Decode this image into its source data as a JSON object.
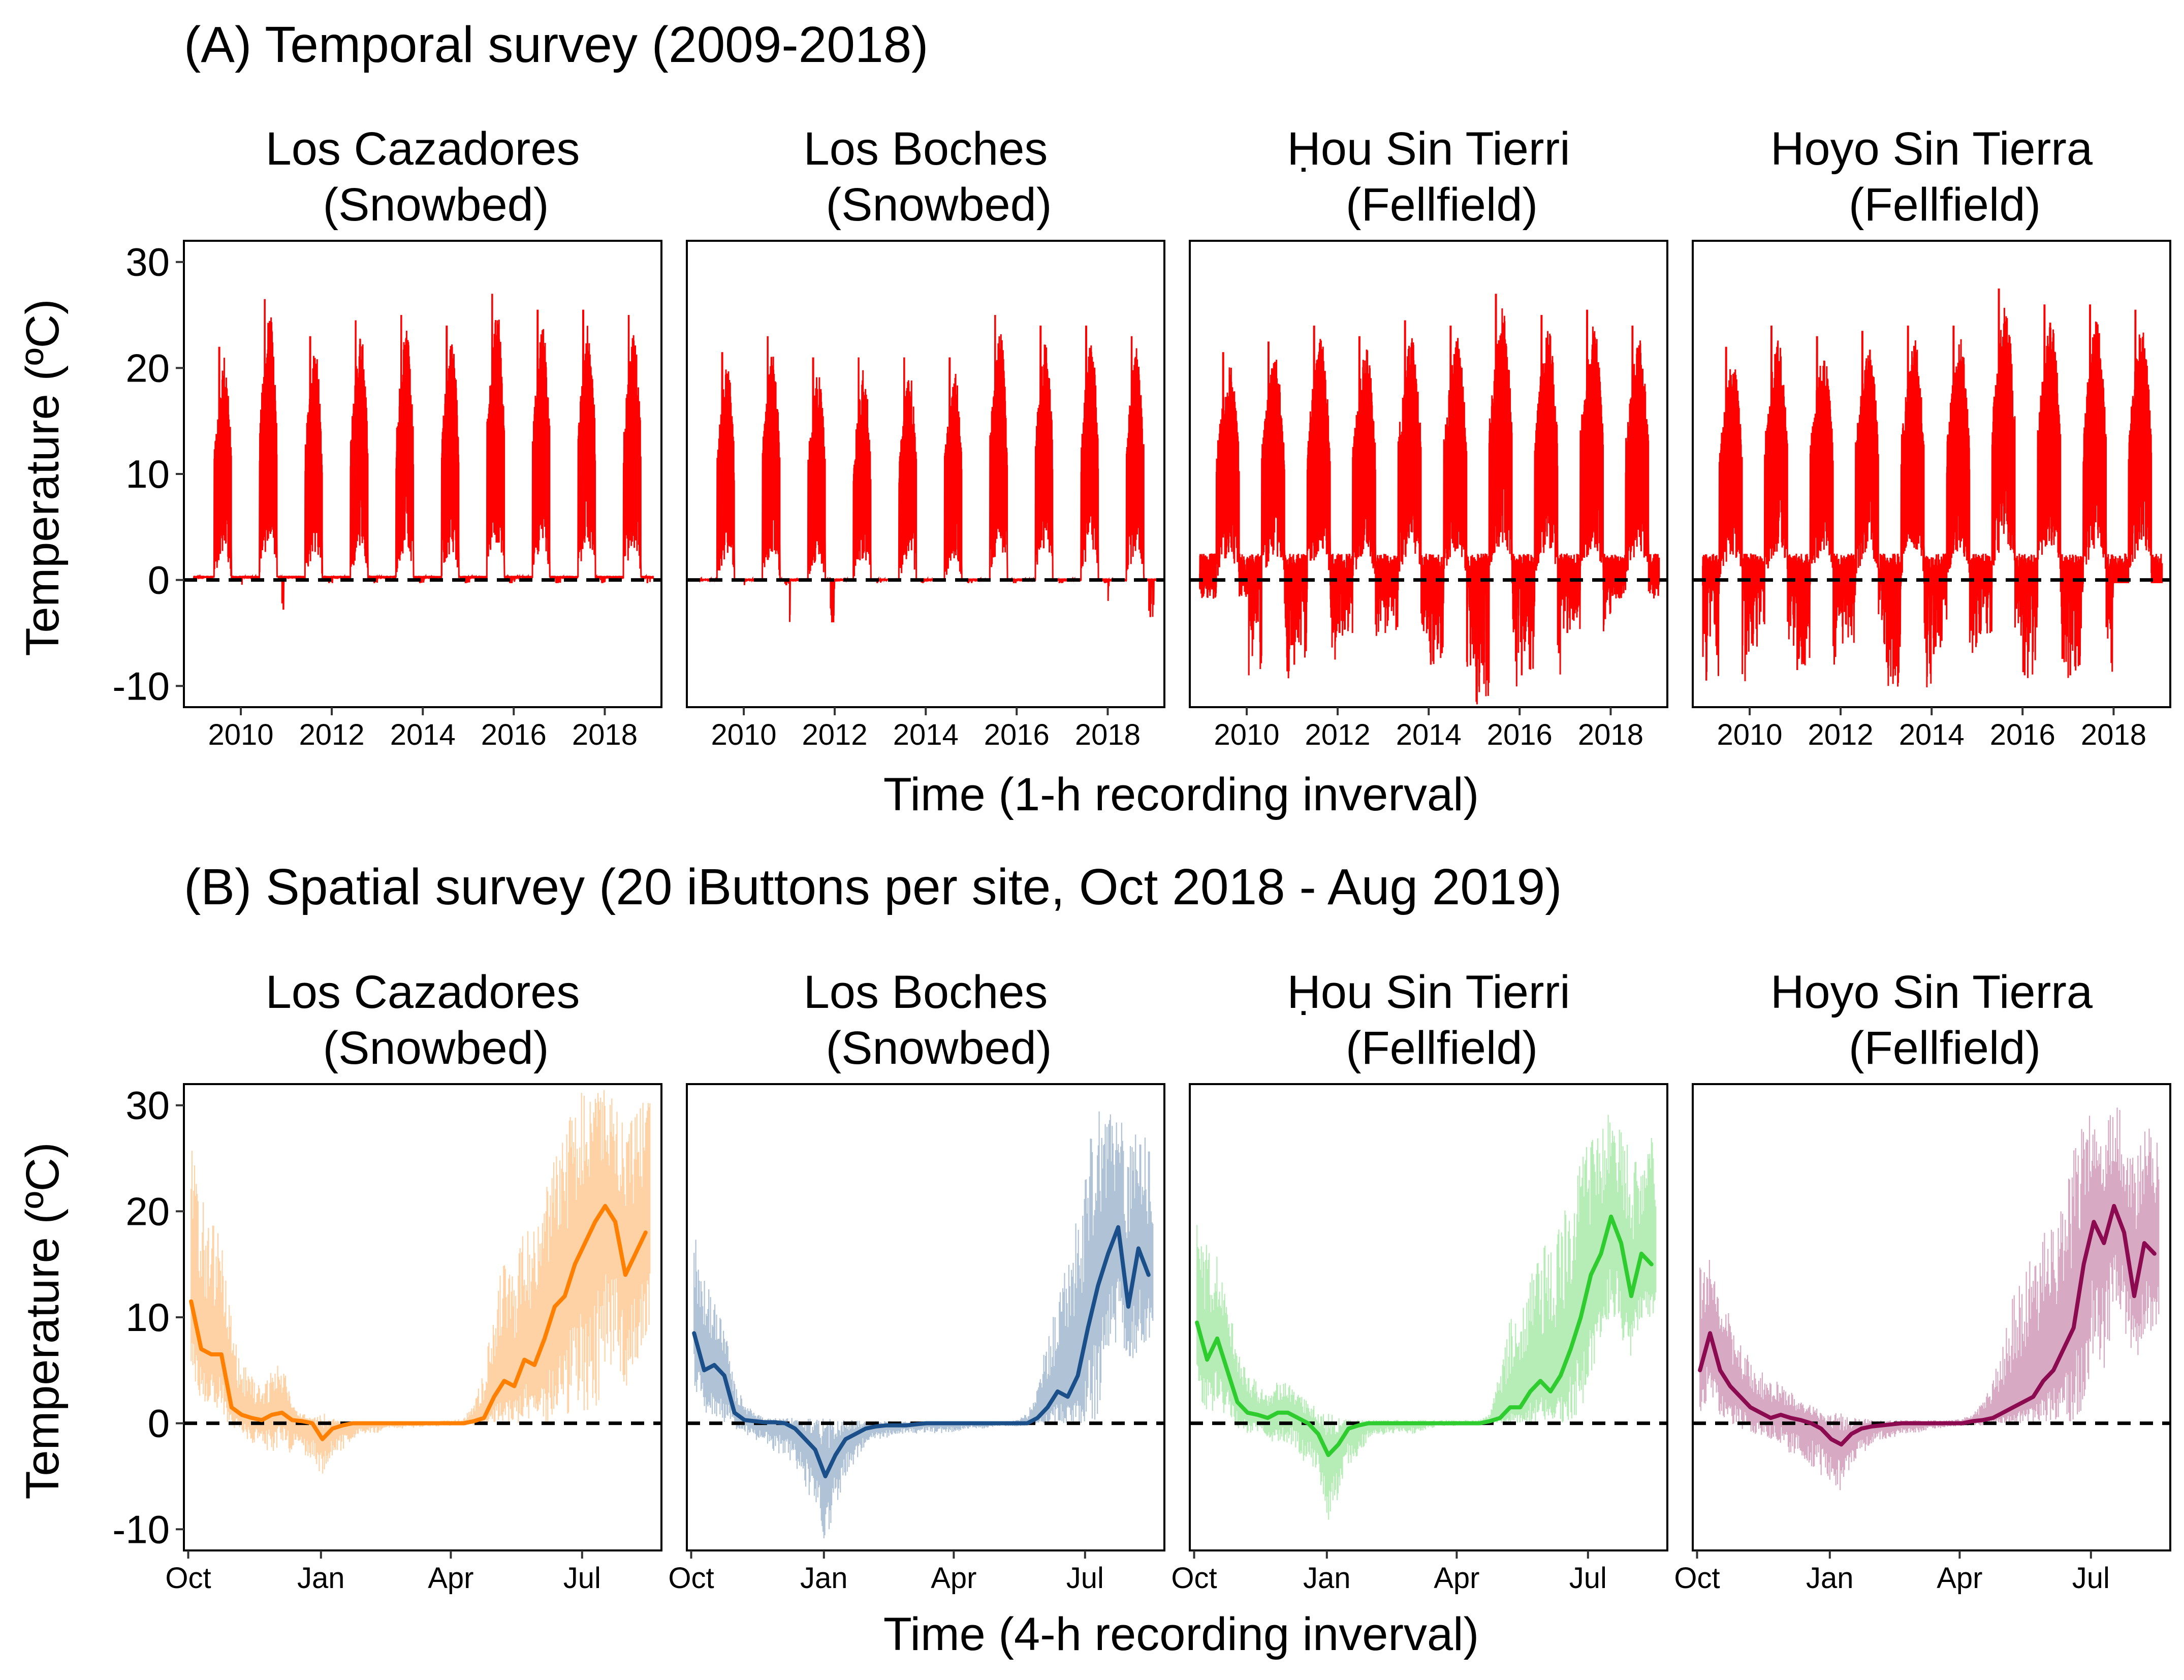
{
  "sections": [
    {
      "id": "A",
      "title": "(A) Temporal survey (2009-2018)",
      "xlabel": "Time (1-h recording inverval)"
    },
    {
      "id": "B",
      "title": "(B) Spatial survey (20 iButtons per site, Oct 2018 - Aug 2019)",
      "xlabel": "Time (4-h recording inverval)"
    }
  ],
  "ylabel": "Temperature (ºC)",
  "sites": [
    {
      "line1": "Los Cazadores",
      "line2": "(Snowbed)"
    },
    {
      "line1": "Los Boches",
      "line2": "(Snowbed)"
    },
    {
      "line1": "Ḥou Sin Tierri",
      "line2": "(Fellfield)"
    },
    {
      "line1": "Hoyo Sin Tierra",
      "line2": "(Fellfield)"
    }
  ],
  "colors": {
    "temporal": "#ff0000",
    "spatial": [
      "#ff7f00",
      "#1b4f8a",
      "#2ecc2e",
      "#8b0a50"
    ],
    "zero_line": "#000000"
  },
  "chart_data": [
    {
      "type": "line",
      "section": "A",
      "x_axis": {
        "type": "date",
        "range": [
          "2008-10-01",
          "2019-04-01"
        ],
        "ticks": [
          "2010",
          "2012",
          "2014",
          "2016",
          "2018"
        ],
        "tick_values": [
          2010,
          2012,
          2014,
          2016,
          2018
        ]
      },
      "y_axis": {
        "range": [
          -12,
          32
        ],
        "ticks": [
          "-10",
          "0",
          "10",
          "20",
          "30"
        ],
        "tick_values": [
          -10,
          0,
          10,
          20,
          30
        ]
      },
      "reference_line": {
        "y": 0,
        "style": "dashed"
      },
      "grid": false,
      "series": [
        {
          "site": "Los Cazadores (Snowbed)",
          "annual_summer_max": [
            22,
            26.5,
            23,
            24.5,
            25,
            24,
            27,
            25.5,
            25.5,
            25
          ],
          "annual_min": [
            0,
            -2.8,
            -0.3,
            -0.3,
            -0.3,
            -0.3,
            -0.3,
            -0.3,
            -0.3,
            -0.3
          ]
        },
        {
          "site": "Los Boches (Snowbed)",
          "annual_summer_max": [
            21.5,
            23,
            21,
            21,
            21,
            21,
            25,
            24,
            24,
            23
          ],
          "annual_min": [
            0,
            -0.5,
            -4,
            -0.3,
            -0.3,
            -0.3,
            -0.3,
            -0.3,
            -0.3,
            -3.5
          ]
        },
        {
          "site": "Ḥou Sin Tierri (Fellfield)",
          "annual_summer_max": [
            21.5,
            22.5,
            24,
            23,
            24.5,
            24,
            27,
            25,
            25.5,
            24
          ],
          "annual_min": [
            -1.5,
            -9,
            -8,
            -5,
            -5,
            -8,
            -11.5,
            -9,
            -5,
            -1.5
          ]
        },
        {
          "site": "Hoyo Sin Tierra (Fellfield)",
          "annual_summer_max": [
            22,
            24,
            23,
            23.5,
            24,
            24,
            27.5,
            26,
            26,
            25.5
          ],
          "annual_min": [
            -9.5,
            -6,
            -8.5,
            -6,
            -10,
            -7,
            -5,
            -9,
            -9,
            0
          ]
        }
      ]
    },
    {
      "type": "line",
      "section": "B",
      "x_axis": {
        "type": "date",
        "range": [
          "2018-09-28",
          "2019-08-25"
        ],
        "ticks": [
          "Oct",
          "Jan",
          "Apr",
          "Jul"
        ],
        "tick_values": [
          "2018-10-01",
          "2019-01-01",
          "2019-04-01",
          "2019-07-01"
        ]
      },
      "y_axis": {
        "range": [
          -12,
          32
        ],
        "ticks": [
          "-10",
          "0",
          "10",
          "20",
          "30"
        ],
        "tick_values": [
          -10,
          0,
          10,
          20,
          30
        ]
      },
      "reference_line": {
        "y": 0,
        "style": "dashed"
      },
      "grid": false,
      "series": [
        {
          "site": "Los Cazadores (Snowbed)",
          "x": [
            "2018-10-03",
            "2018-10-10",
            "2018-10-17",
            "2018-10-24",
            "2018-10-31",
            "2018-11-07",
            "2018-11-14",
            "2018-11-21",
            "2018-11-28",
            "2018-12-05",
            "2018-12-12",
            "2018-12-19",
            "2018-12-26",
            "2019-01-02",
            "2019-01-09",
            "2019-01-16",
            "2019-01-23",
            "2019-01-30",
            "2019-02-06",
            "2019-02-13",
            "2019-02-20",
            "2019-02-27",
            "2019-03-06",
            "2019-03-13",
            "2019-03-20",
            "2019-03-27",
            "2019-04-03",
            "2019-04-10",
            "2019-04-17",
            "2019-04-24",
            "2019-05-01",
            "2019-05-08",
            "2019-05-15",
            "2019-05-22",
            "2019-05-29",
            "2019-06-05",
            "2019-06-12",
            "2019-06-19",
            "2019-06-26",
            "2019-07-03",
            "2019-07-10",
            "2019-07-17",
            "2019-07-24",
            "2019-07-31",
            "2019-08-07",
            "2019-08-14"
          ],
          "mean": [
            11.5,
            7,
            6.5,
            6.5,
            1.5,
            0.8,
            0.5,
            0.3,
            0.8,
            1,
            0.3,
            0.2,
            0,
            -1.5,
            -0.5,
            -0.2,
            0,
            0,
            0,
            0,
            0,
            0,
            0,
            0,
            0,
            0,
            0,
            0,
            0.2,
            0.5,
            2.5,
            4,
            3.5,
            6,
            5.5,
            8,
            11,
            12,
            15,
            17,
            19,
            20.5,
            19,
            14,
            16,
            18
          ],
          "max": [
            28,
            22,
            20,
            18,
            10,
            6,
            5,
            3,
            5,
            6,
            2,
            1,
            0.5,
            1,
            0.5,
            0.3,
            0.2,
            0.2,
            0.2,
            0.2,
            0.2,
            0.2,
            0.2,
            0.2,
            0.2,
            0.3,
            0.3,
            0.5,
            2,
            5,
            12,
            16,
            14,
            20,
            18,
            22,
            26,
            28,
            30,
            32,
            31,
            32,
            30,
            28,
            30,
            31
          ],
          "min": [
            4,
            2,
            1.5,
            1,
            -0.5,
            -1,
            -2,
            -2,
            -3,
            -2,
            -3,
            -3,
            -3.5,
            -5.5,
            -3,
            -2.5,
            -1.5,
            -1,
            -1,
            -0.8,
            -0.5,
            -0.5,
            -0.5,
            -0.3,
            -0.3,
            -0.3,
            -0.2,
            -0.2,
            -0.2,
            0,
            0,
            0,
            0,
            0,
            0,
            0,
            0,
            0,
            0,
            0,
            1,
            4,
            6,
            3,
            5,
            7
          ]
        },
        {
          "site": "Los Boches (Snowbed)",
          "x": [
            "2018-10-03",
            "2018-10-10",
            "2018-10-17",
            "2018-10-24",
            "2018-10-31",
            "2018-11-07",
            "2018-11-14",
            "2018-11-21",
            "2018-11-28",
            "2018-12-05",
            "2018-12-12",
            "2018-12-19",
            "2018-12-26",
            "2019-01-02",
            "2019-01-09",
            "2019-01-16",
            "2019-01-23",
            "2019-01-30",
            "2019-02-06",
            "2019-02-13",
            "2019-02-20",
            "2019-02-27",
            "2019-03-06",
            "2019-03-13",
            "2019-03-20",
            "2019-03-27",
            "2019-04-03",
            "2019-04-10",
            "2019-04-17",
            "2019-04-24",
            "2019-05-01",
            "2019-05-08",
            "2019-05-15",
            "2019-05-22",
            "2019-05-29",
            "2019-06-05",
            "2019-06-12",
            "2019-06-19",
            "2019-06-26",
            "2019-07-03",
            "2019-07-10",
            "2019-07-17",
            "2019-07-24",
            "2019-07-31",
            "2019-08-07",
            "2019-08-14"
          ],
          "mean": [
            8.5,
            5,
            5.5,
            4.5,
            1,
            0.3,
            0.2,
            0.1,
            0.1,
            0,
            -0.5,
            -1.5,
            -2.5,
            -5,
            -3,
            -1.5,
            -1,
            -0.5,
            -0.3,
            -0.2,
            -0.2,
            -0.2,
            -0.1,
            0,
            0,
            0,
            0,
            0,
            0,
            0,
            0,
            0,
            0,
            0,
            0.5,
            1.5,
            3,
            2.5,
            4.5,
            9,
            13,
            16,
            18.5,
            11,
            16.5,
            14
          ],
          "max": [
            19,
            14,
            12,
            10,
            4,
            2,
            1,
            0.5,
            0.5,
            0.5,
            0.5,
            0.5,
            0.5,
            0.5,
            0.3,
            0.3,
            0.3,
            0.2,
            0.2,
            0.2,
            0.2,
            0.2,
            0.2,
            0.2,
            0.2,
            0.2,
            0.2,
            0.2,
            0.2,
            0.2,
            0.2,
            0.2,
            0.3,
            1,
            4,
            8,
            12,
            16,
            20,
            26,
            30,
            29,
            30,
            27,
            28,
            27
          ],
          "min": [
            3,
            1,
            0.5,
            0,
            -0.5,
            -1,
            -1.5,
            -2,
            -3,
            -3,
            -4,
            -6,
            -8,
            -11.5,
            -8,
            -5,
            -4,
            -2,
            -1.5,
            -1.5,
            -1,
            -1,
            -1,
            -1,
            -1,
            -1,
            -0.8,
            -0.5,
            -0.5,
            -0.5,
            -0.3,
            -0.3,
            -0.3,
            -0.2,
            0,
            0,
            0,
            0,
            0,
            0,
            0,
            6,
            8,
            5,
            7,
            8
          ]
        },
        {
          "site": "Ḥou Sin Tierri (Fellfield)",
          "x": [
            "2018-10-03",
            "2018-10-10",
            "2018-10-17",
            "2018-10-24",
            "2018-10-31",
            "2018-11-07",
            "2018-11-14",
            "2018-11-21",
            "2018-11-28",
            "2018-12-05",
            "2018-12-12",
            "2018-12-19",
            "2018-12-26",
            "2019-01-02",
            "2019-01-09",
            "2019-01-16",
            "2019-01-23",
            "2019-01-30",
            "2019-02-06",
            "2019-02-13",
            "2019-02-20",
            "2019-02-27",
            "2019-03-06",
            "2019-03-13",
            "2019-03-20",
            "2019-03-27",
            "2019-04-03",
            "2019-04-10",
            "2019-04-17",
            "2019-04-24",
            "2019-05-01",
            "2019-05-08",
            "2019-05-15",
            "2019-05-22",
            "2019-05-29",
            "2019-06-05",
            "2019-06-12",
            "2019-06-19",
            "2019-06-26",
            "2019-07-03",
            "2019-07-10",
            "2019-07-17",
            "2019-07-24",
            "2019-07-31",
            "2019-08-07",
            "2019-08-14"
          ],
          "mean": [
            9.5,
            6,
            8,
            5,
            2,
            1,
            0.8,
            0.5,
            1,
            1,
            0.5,
            0,
            -1,
            -3,
            -2,
            -0.5,
            -0.2,
            0,
            0,
            0,
            0,
            0,
            0,
            0,
            0,
            0,
            0,
            0,
            0,
            0.2,
            0.5,
            1.5,
            1.5,
            3,
            4,
            3,
            4.5,
            7,
            10,
            14,
            16,
            19.5,
            17,
            12,
            16,
            15
          ],
          "max": [
            21,
            17,
            16,
            12,
            7,
            5,
            4,
            3,
            4,
            4,
            3,
            2,
            1.5,
            1,
            0.5,
            0.5,
            0.3,
            0.3,
            0.3,
            0.3,
            0.3,
            0.3,
            0.3,
            0.3,
            0.3,
            0.3,
            0.3,
            0.3,
            0.3,
            1,
            5,
            10,
            12,
            14,
            16,
            18,
            20,
            22,
            25,
            27,
            28,
            30,
            28,
            26,
            25,
            27
          ],
          "min": [
            3,
            1,
            1,
            0.5,
            -0.5,
            -1,
            -1,
            -1.5,
            -2,
            -2,
            -3,
            -4,
            -5,
            -9.5,
            -7,
            -4,
            -3,
            -1.5,
            -1.2,
            -1,
            -1,
            -1,
            -1,
            -0.5,
            -0.3,
            -0.3,
            -0.2,
            -0.2,
            -0.2,
            0,
            0,
            0,
            0,
            0,
            0,
            0,
            0,
            0,
            1,
            4,
            6,
            10,
            8,
            6,
            8,
            9
          ]
        },
        {
          "site": "Hoyo Sin Tierra (Fellfield)",
          "x": [
            "2018-10-03",
            "2018-10-10",
            "2018-10-17",
            "2018-10-24",
            "2018-10-31",
            "2018-11-07",
            "2018-11-14",
            "2018-11-21",
            "2018-11-28",
            "2018-12-05",
            "2018-12-12",
            "2018-12-19",
            "2018-12-26",
            "2019-01-02",
            "2019-01-09",
            "2019-01-16",
            "2019-01-23",
            "2019-01-30",
            "2019-02-06",
            "2019-02-13",
            "2019-02-20",
            "2019-02-27",
            "2019-03-06",
            "2019-03-13",
            "2019-03-20",
            "2019-03-27",
            "2019-04-03",
            "2019-04-10",
            "2019-04-17",
            "2019-04-24",
            "2019-05-01",
            "2019-05-08",
            "2019-05-15",
            "2019-05-22",
            "2019-05-29",
            "2019-06-05",
            "2019-06-12",
            "2019-06-19",
            "2019-06-26",
            "2019-07-03",
            "2019-07-10",
            "2019-07-17",
            "2019-07-24",
            "2019-07-31",
            "2019-08-07",
            "2019-08-14"
          ],
          "mean": [
            5,
            8.5,
            5,
            3.5,
            2.5,
            1.5,
            1,
            0.5,
            0.8,
            0.5,
            0.3,
            0,
            -0.5,
            -1.5,
            -2,
            -1,
            -0.5,
            -0.3,
            -0.2,
            -0.1,
            0,
            0,
            0,
            0,
            0,
            0,
            0,
            0.2,
            0.3,
            0.5,
            1,
            1.5,
            2,
            2.5,
            4,
            5,
            7,
            9,
            15,
            19,
            17,
            20.5,
            18,
            12,
            17,
            16
          ],
          "max": [
            16,
            17,
            13,
            10,
            8,
            6,
            5,
            4,
            4,
            3,
            2,
            2,
            1.5,
            1,
            1,
            0.5,
            0.5,
            0.3,
            0.3,
            0.3,
            0.3,
            0.3,
            0.3,
            0.3,
            0.3,
            0.3,
            0.5,
            1,
            2,
            4,
            8,
            12,
            14,
            16,
            18,
            20,
            22,
            26,
            29,
            30,
            29,
            31,
            29,
            25,
            28,
            29
          ],
          "min": [
            1,
            2,
            0.5,
            0,
            -0.5,
            -1,
            -1.5,
            -1.5,
            -2,
            -3,
            -3,
            -4,
            -5,
            -6,
            -6.5,
            -4,
            -3,
            -2,
            -1.5,
            -1.5,
            -1,
            -1,
            -0.8,
            -0.5,
            -0.5,
            -0.3,
            -0.3,
            -0.2,
            -0.2,
            0,
            0,
            0,
            0,
            0,
            0,
            0,
            0,
            0,
            1,
            6,
            5,
            10,
            8,
            6,
            7,
            9
          ]
        }
      ]
    }
  ]
}
